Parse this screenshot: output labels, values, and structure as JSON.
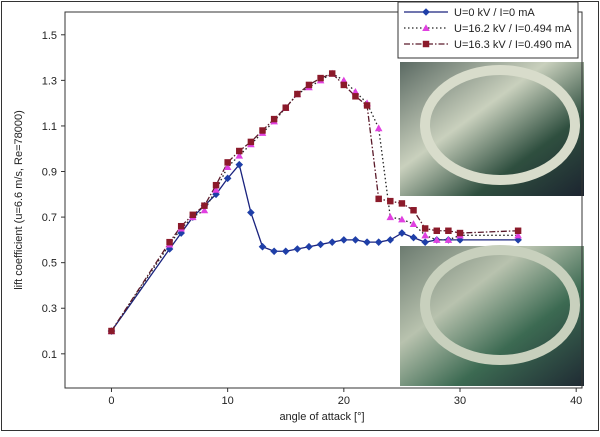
{
  "chart_data": {
    "type": "line",
    "x_label": "angle of attack [°]",
    "y_label": "lift coefficient (u=6.6 m/s, Re=78000)",
    "x": [
      0,
      5,
      6,
      7,
      8,
      9,
      10,
      11,
      12,
      13,
      14,
      15,
      16,
      17,
      18,
      19,
      20,
      21,
      22,
      23,
      24,
      25,
      26,
      27,
      28,
      29,
      30,
      35
    ],
    "series": [
      {
        "name": "U=0 kV / I=0 mA",
        "color": "#1a237e",
        "marker": "diamond",
        "marker_color": "#1f3fa8",
        "dash": "solid",
        "values": [
          0.2,
          0.56,
          0.63,
          0.7,
          0.75,
          0.8,
          0.87,
          0.93,
          0.72,
          0.57,
          0.55,
          0.55,
          0.56,
          0.57,
          0.58,
          0.59,
          0.6,
          0.6,
          0.59,
          0.59,
          0.6,
          0.63,
          0.61,
          0.59,
          0.6,
          0.6,
          0.6,
          0.6
        ]
      },
      {
        "name": "U=16.2 kV / I=0.494 mA",
        "color": "#222222",
        "marker": "triangle",
        "marker_color": "#e040e0",
        "dash": "dotted",
        "values": [
          0.2,
          0.58,
          0.65,
          0.7,
          0.73,
          0.82,
          0.92,
          0.97,
          1.02,
          1.07,
          1.12,
          1.18,
          1.24,
          1.27,
          1.3,
          1.33,
          1.3,
          1.25,
          1.2,
          1.09,
          0.7,
          0.69,
          0.67,
          0.62,
          0.6,
          0.6,
          0.62,
          0.62
        ]
      },
      {
        "name": "U=16.3 kV / I=0.490 mA",
        "color": "#5a1a2a",
        "marker": "square",
        "marker_color": "#8b1a2a",
        "dash": "dashdot",
        "values": [
          0.2,
          0.59,
          0.66,
          0.71,
          0.75,
          0.84,
          0.94,
          0.99,
          1.03,
          1.08,
          1.13,
          1.18,
          1.24,
          1.28,
          1.31,
          1.33,
          1.28,
          1.23,
          1.19,
          0.78,
          0.77,
          0.76,
          0.73,
          0.65,
          0.64,
          0.64,
          0.63,
          0.64
        ]
      }
    ],
    "xlim": [
      -4,
      40.5
    ],
    "xticks": [
      0,
      10,
      20,
      30,
      40
    ],
    "ylim": [
      -0.05,
      1.6
    ],
    "yticks": [
      0.1,
      0.3,
      0.5,
      0.7,
      0.9,
      1.1,
      1.3,
      1.5
    ],
    "legend": "upper right",
    "grid": false
  }
}
